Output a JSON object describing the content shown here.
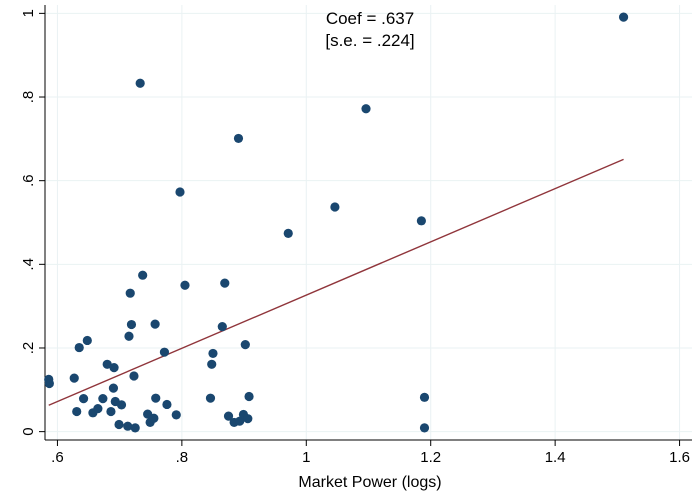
{
  "chart_data": {
    "type": "scatter",
    "title": "",
    "xlabel": "Market Power (logs)",
    "ylabel": "",
    "xlim": [
      0.58,
      1.62
    ],
    "ylim": [
      -0.02,
      1.02
    ],
    "x_ticks": [
      0.6,
      0.8,
      1.0,
      1.2,
      1.4,
      1.6
    ],
    "x_tick_labels": [
      ".6",
      ".8",
      "1",
      "1.2",
      "1.4",
      "1.6"
    ],
    "y_ticks": [
      0,
      0.2,
      0.4,
      0.6,
      0.8,
      1.0
    ],
    "y_tick_labels": [
      "0",
      ".2",
      ".4",
      ".6",
      ".8",
      "1"
    ],
    "grid": true,
    "annotation": [
      "Coef = .637",
      "[s.e. = .224]"
    ],
    "marker_color": "#1a476f",
    "fit_color": "#90353b",
    "points": [
      {
        "x": 0.586,
        "y": 0.125
      },
      {
        "x": 0.587,
        "y": 0.115
      },
      {
        "x": 0.627,
        "y": 0.128
      },
      {
        "x": 0.631,
        "y": 0.048
      },
      {
        "x": 0.635,
        "y": 0.201
      },
      {
        "x": 0.642,
        "y": 0.079
      },
      {
        "x": 0.648,
        "y": 0.218
      },
      {
        "x": 0.657,
        "y": 0.045
      },
      {
        "x": 0.665,
        "y": 0.055
      },
      {
        "x": 0.673,
        "y": 0.079
      },
      {
        "x": 0.68,
        "y": 0.161
      },
      {
        "x": 0.686,
        "y": 0.048
      },
      {
        "x": 0.69,
        "y": 0.104
      },
      {
        "x": 0.691,
        "y": 0.153
      },
      {
        "x": 0.693,
        "y": 0.072
      },
      {
        "x": 0.699,
        "y": 0.017
      },
      {
        "x": 0.703,
        "y": 0.064
      },
      {
        "x": 0.713,
        "y": 0.013
      },
      {
        "x": 0.715,
        "y": 0.228
      },
      {
        "x": 0.717,
        "y": 0.331
      },
      {
        "x": 0.719,
        "y": 0.256
      },
      {
        "x": 0.723,
        "y": 0.133
      },
      {
        "x": 0.725,
        "y": 0.009
      },
      {
        "x": 0.733,
        "y": 0.833
      },
      {
        "x": 0.737,
        "y": 0.374
      },
      {
        "x": 0.745,
        "y": 0.042
      },
      {
        "x": 0.749,
        "y": 0.022
      },
      {
        "x": 0.755,
        "y": 0.032
      },
      {
        "x": 0.757,
        "y": 0.257
      },
      {
        "x": 0.758,
        "y": 0.08
      },
      {
        "x": 0.772,
        "y": 0.19
      },
      {
        "x": 0.776,
        "y": 0.065
      },
      {
        "x": 0.791,
        "y": 0.04
      },
      {
        "x": 0.797,
        "y": 0.573
      },
      {
        "x": 0.805,
        "y": 0.35
      },
      {
        "x": 0.846,
        "y": 0.08
      },
      {
        "x": 0.848,
        "y": 0.161
      },
      {
        "x": 0.85,
        "y": 0.187
      },
      {
        "x": 0.865,
        "y": 0.251
      },
      {
        "x": 0.869,
        "y": 0.355
      },
      {
        "x": 0.875,
        "y": 0.037
      },
      {
        "x": 0.884,
        "y": 0.022
      },
      {
        "x": 0.891,
        "y": 0.701
      },
      {
        "x": 0.893,
        "y": 0.025
      },
      {
        "x": 0.899,
        "y": 0.041
      },
      {
        "x": 0.902,
        "y": 0.208
      },
      {
        "x": 0.906,
        "y": 0.031
      },
      {
        "x": 0.908,
        "y": 0.084
      },
      {
        "x": 0.971,
        "y": 0.474
      },
      {
        "x": 1.046,
        "y": 0.537
      },
      {
        "x": 1.096,
        "y": 0.772
      },
      {
        "x": 1.185,
        "y": 0.504
      },
      {
        "x": 1.19,
        "y": 0.082
      },
      {
        "x": 1.19,
        "y": 0.009
      },
      {
        "x": 1.51,
        "y": 0.991
      }
    ],
    "fit_line": {
      "x": [
        0.586,
        1.51
      ],
      "y": [
        0.063,
        0.651
      ]
    }
  }
}
